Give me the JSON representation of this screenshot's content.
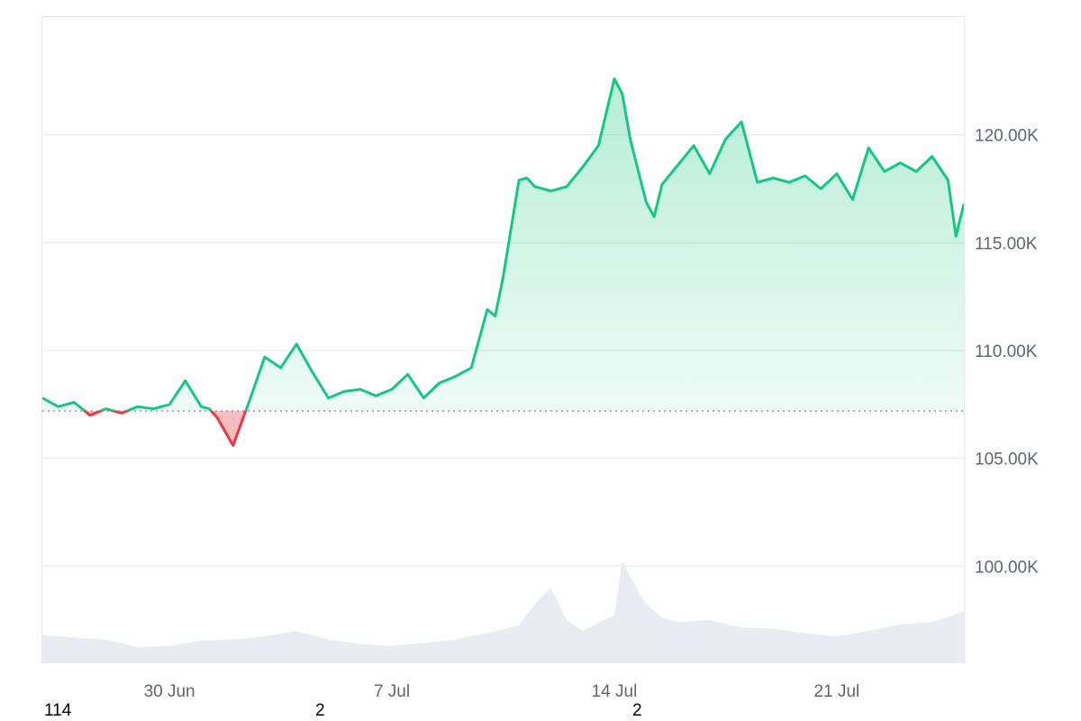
{
  "colors": {
    "up": "#16c784",
    "down": "#ea3943",
    "up_fill": "#16c784",
    "down_fill": "#ea3943",
    "grid": "#e6e8ec",
    "baseline": "#7d7f87",
    "volume": "#e9ecf0",
    "tick_text": "#5f6470"
  },
  "footer": {
    "left_value": "114",
    "mid_value_1": "2",
    "mid_value_2": "2"
  },
  "chart_data": {
    "type": "area",
    "title": "",
    "xlabel": "",
    "ylabel": "",
    "x_ticks": [
      "30 Jun",
      "7 Jul",
      "14 Jul",
      "21 Jul"
    ],
    "y_ticks": [
      "100.00K",
      "105.00K",
      "110.00K",
      "115.00K",
      "120.00K"
    ],
    "ylim": [
      95500,
      125500
    ],
    "baseline": 107200,
    "x_domain": [
      "2025-06-26T00:00",
      "2025-07-25T00:00"
    ],
    "grid": true,
    "series": [
      {
        "x": [
          "2025-06-26T00:00",
          "2025-06-26T12:00",
          "2025-06-27T00:00",
          "2025-06-27T12:00",
          "2025-06-28T00:00",
          "2025-06-28T12:00",
          "2025-06-29T00:00",
          "2025-06-29T12:00",
          "2025-06-30T00:00",
          "2025-06-30T12:00",
          "2025-07-01T00:00",
          "2025-07-01T06:00",
          "2025-07-01T12:00",
          "2025-07-02T00:00",
          "2025-07-02T12:00",
          "2025-07-03T00:00",
          "2025-07-03T12:00",
          "2025-07-04T00:00",
          "2025-07-04T12:00",
          "2025-07-05T00:00",
          "2025-07-05T12:00",
          "2025-07-06T00:00",
          "2025-07-06T12:00",
          "2025-07-07T00:00",
          "2025-07-07T12:00",
          "2025-07-08T00:00",
          "2025-07-08T12:00",
          "2025-07-09T00:00",
          "2025-07-09T12:00",
          "2025-07-10T00:00",
          "2025-07-10T06:00",
          "2025-07-10T12:00",
          "2025-07-11T00:00",
          "2025-07-11T06:00",
          "2025-07-11T12:00",
          "2025-07-12T00:00",
          "2025-07-12T12:00",
          "2025-07-13T00:00",
          "2025-07-13T12:00",
          "2025-07-14T00:00",
          "2025-07-14T06:00",
          "2025-07-14T12:00",
          "2025-07-15T00:00",
          "2025-07-15T06:00",
          "2025-07-15T12:00",
          "2025-07-16T00:00",
          "2025-07-16T12:00",
          "2025-07-17T00:00",
          "2025-07-17T12:00",
          "2025-07-18T00:00",
          "2025-07-18T12:00",
          "2025-07-19T00:00",
          "2025-07-19T12:00",
          "2025-07-20T00:00",
          "2025-07-20T12:00",
          "2025-07-21T00:00",
          "2025-07-21T12:00",
          "2025-07-22T00:00",
          "2025-07-22T12:00",
          "2025-07-23T00:00",
          "2025-07-23T12:00",
          "2025-07-24T00:00",
          "2025-07-24T12:00",
          "2025-07-24T18:00",
          "2025-07-25T00:00"
        ],
        "values": [
          107800,
          107400,
          107600,
          107000,
          107300,
          107100,
          107400,
          107300,
          107500,
          108600,
          107400,
          107300,
          106900,
          105600,
          107600,
          109700,
          109200,
          110300,
          109000,
          107800,
          108100,
          108200,
          107900,
          108200,
          108900,
          107800,
          108500,
          108800,
          109200,
          111900,
          111600,
          113400,
          117900,
          118000,
          117600,
          117400,
          117600,
          118500,
          119500,
          122600,
          121900,
          119800,
          116900,
          116200,
          117700,
          118600,
          119500,
          118200,
          119800,
          120600,
          117800,
          118000,
          117800,
          118100,
          117500,
          118200,
          117000,
          119400,
          118300,
          118700,
          118300,
          119000,
          117900,
          115300,
          116800
        ]
      }
    ],
    "volume": {
      "x": [
        "2025-06-26T00:00",
        "2025-06-27T00:00",
        "2025-06-28T00:00",
        "2025-06-29T00:00",
        "2025-06-30T00:00",
        "2025-07-01T00:00",
        "2025-07-02T00:00",
        "2025-07-03T00:00",
        "2025-07-04T00:00",
        "2025-07-05T00:00",
        "2025-07-06T00:00",
        "2025-07-07T00:00",
        "2025-07-08T00:00",
        "2025-07-09T00:00",
        "2025-07-10T00:00",
        "2025-07-11T00:00",
        "2025-07-11T12:00",
        "2025-07-12T00:00",
        "2025-07-12T12:00",
        "2025-07-13T00:00",
        "2025-07-14T00:00",
        "2025-07-14T06:00",
        "2025-07-14T12:00",
        "2025-07-15T00:00",
        "2025-07-15T12:00",
        "2025-07-16T00:00",
        "2025-07-17T00:00",
        "2025-07-18T00:00",
        "2025-07-19T00:00",
        "2025-07-20T00:00",
        "2025-07-21T00:00",
        "2025-07-22T00:00",
        "2025-07-23T00:00",
        "2025-07-24T00:00",
        "2025-07-25T00:00"
      ],
      "values": [
        0.26,
        0.24,
        0.22,
        0.15,
        0.16,
        0.21,
        0.22,
        0.25,
        0.3,
        0.22,
        0.18,
        0.16,
        0.19,
        0.22,
        0.28,
        0.35,
        0.55,
        0.7,
        0.4,
        0.3,
        0.45,
        0.95,
        0.8,
        0.55,
        0.42,
        0.38,
        0.4,
        0.33,
        0.32,
        0.28,
        0.25,
        0.3,
        0.36,
        0.38,
        0.48
      ]
    }
  }
}
